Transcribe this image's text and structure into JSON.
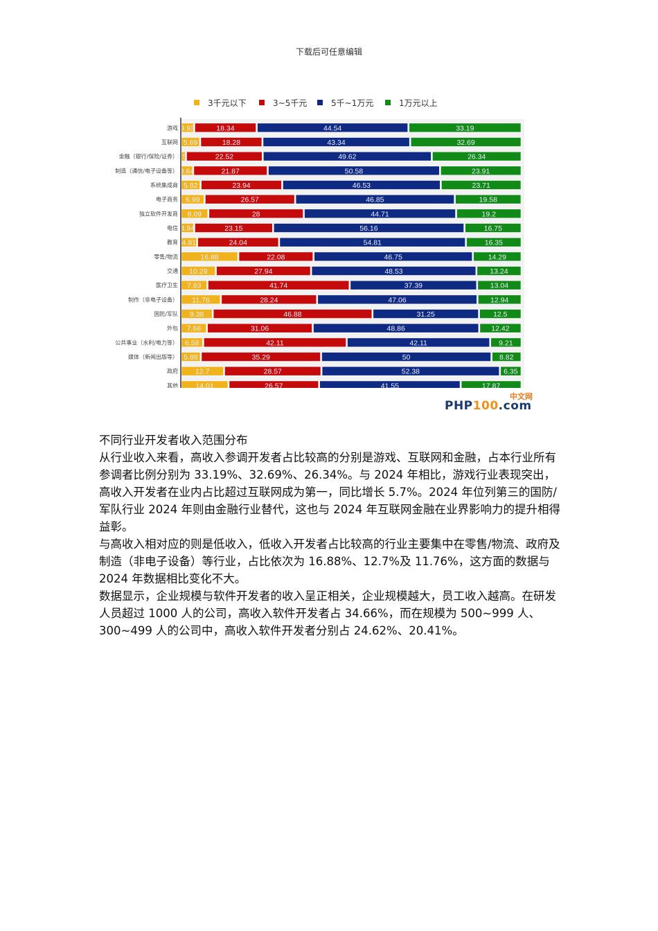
{
  "header_note": "下载后可任意编辑",
  "chart_data": {
    "type": "bar",
    "orientation": "horizontal",
    "stacked": true,
    "categories": [
      "游戏",
      "互联网",
      "金融（银行/保险/证券）",
      "制造（通信/电子设备等）",
      "系统集成商",
      "电子商务",
      "独立软件开发商",
      "电信",
      "教育",
      "零售/物流",
      "交通",
      "医疗卫生",
      "制作（非电子设备）",
      "国防/军队",
      "外包",
      "公共事业（水利/电力等）",
      "媒体（新闻出版等）",
      "政府",
      "其他"
    ],
    "series": [
      {
        "name": "3千元以下",
        "color": "#f0b31e",
        "values": [
          3.93,
          5.69,
          1.52,
          3.64,
          5.82,
          6.99,
          8.09,
          3.94,
          4.81,
          16.88,
          10.29,
          7.83,
          11.76,
          9.38,
          7.66,
          6.58,
          5.88,
          12.7,
          14.01
        ]
      },
      {
        "name": "3~5千元",
        "color": "#c40a0a",
        "values": [
          18.34,
          18.28,
          22.52,
          21.87,
          23.94,
          26.57,
          28,
          23.15,
          24.04,
          22.08,
          27.94,
          41.74,
          28.24,
          46.88,
          31.06,
          42.11,
          35.29,
          28.57,
          26.57
        ]
      },
      {
        "name": "5千~1万元",
        "color": "#0f2a82",
        "values": [
          44.54,
          43.34,
          49.62,
          50.58,
          46.53,
          46.85,
          44.71,
          56.16,
          54.81,
          46.75,
          48.53,
          37.39,
          47.06,
          31.25,
          48.86,
          42.11,
          50,
          52.38,
          41.55
        ]
      },
      {
        "name": "1万元以上",
        "color": "#118a18",
        "values": [
          33.19,
          32.69,
          26.34,
          23.91,
          23.71,
          19.58,
          19.2,
          16.75,
          16.35,
          14.29,
          13.24,
          13.04,
          12.94,
          12.5,
          12.42,
          9.21,
          8.82,
          6.35,
          17.87
        ]
      }
    ],
    "xlim": [
      0,
      100
    ],
    "xticks": [
      0,
      10,
      20,
      30,
      40,
      50,
      60,
      70,
      80,
      90
    ],
    "legend_position": "top",
    "grid": false
  },
  "watermark": {
    "cn": "中文网",
    "php": "PHP",
    "num": "100",
    "dom": ".com"
  },
  "body": {
    "title": "不同行业开发者收入范围分布",
    "paragraphs": [
      "从行业收入来看，高收入参调开发者占比较高的分别是游戏、互联网和金融，占本行业所有参调者比例分别为 33.19%、32.69%、26.34%。与 2024 年相比，游戏行业表现突出，高收入开发者在业内占比超过互联网成为第一，同比增长 5.7%。2024 年位列第三的国防/军队行业 2024 年则由金融行业替代，这也与 2024 年互联网金融在业界影响力的提升相得益彰。",
      "与高收入相对应的则是低收入，低收入开发者占比较高的行业主要集中在零售/物流、政府及制造（非电子设备）等行业，占比依次为 16.88%、12.7%及 11.76%，这方面的数据与 2024 年数据相比变化不大。",
      "数据显示，企业规模与软件开发者的收入呈正相关，企业规模越大，员工收入越高。在研发人员超过 1000 人的公司，高收入软件开发者占 34.66%，而在规模为 500~999 人、300~499 人的公司中，高收入软件开发者分别占 24.62%、20.41%。"
    ]
  }
}
